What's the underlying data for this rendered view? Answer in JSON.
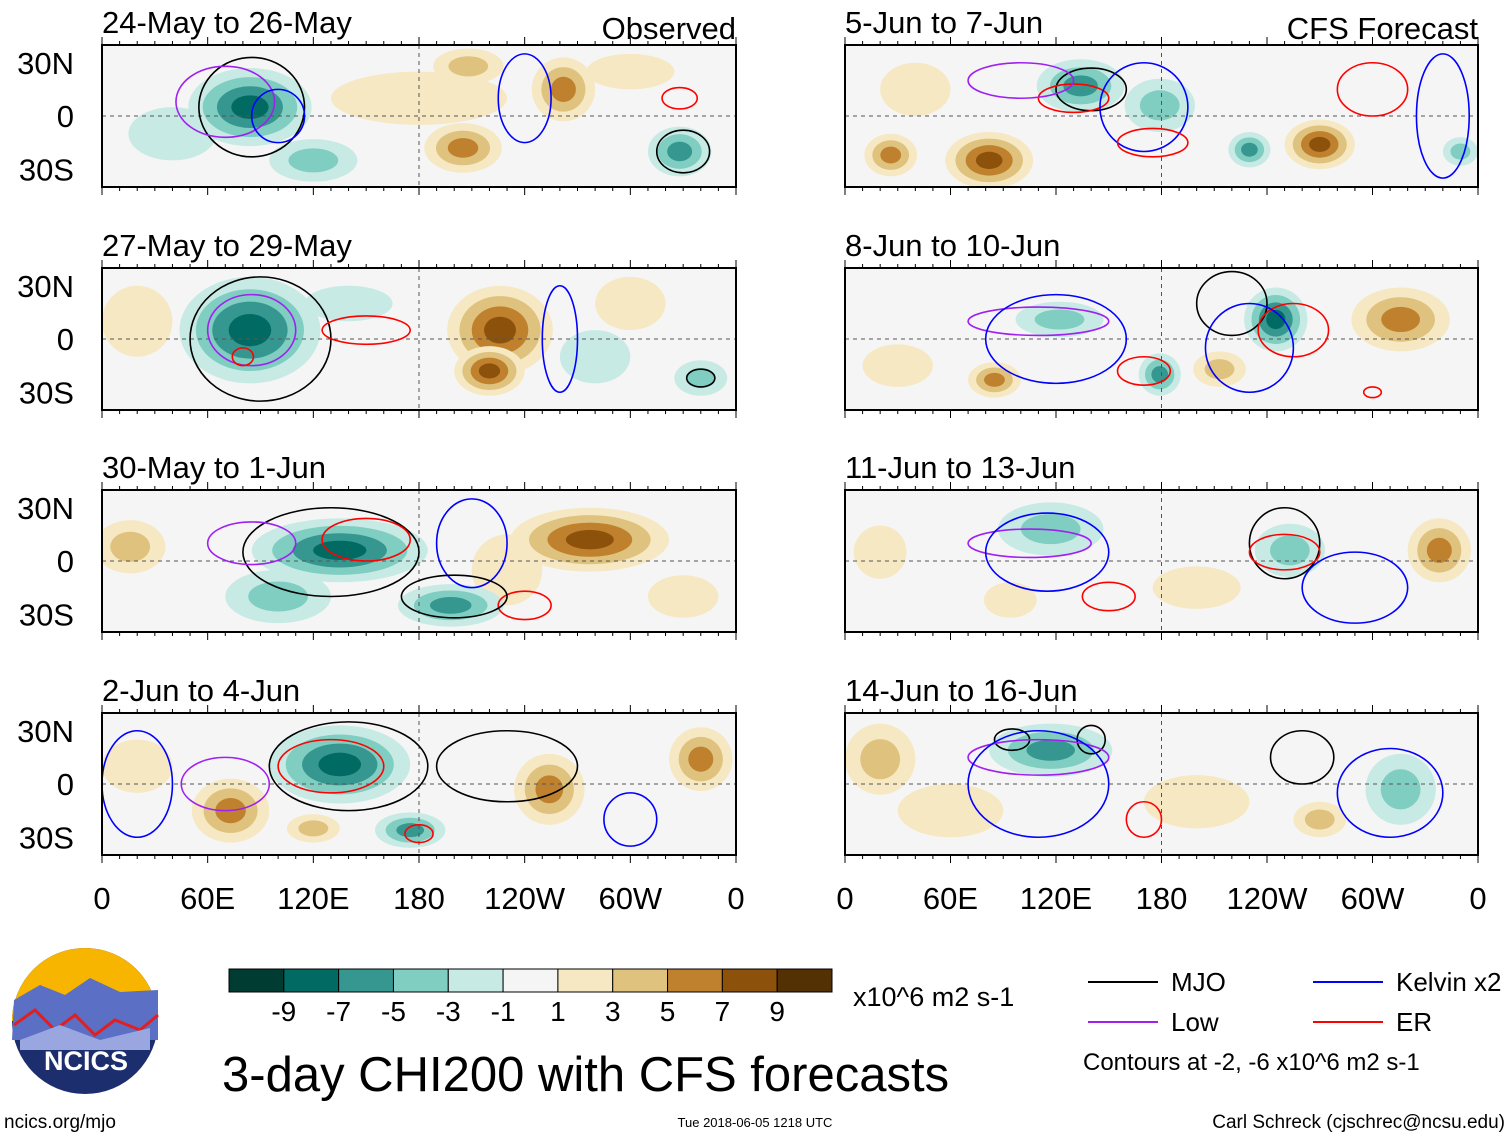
{
  "chart_data": {
    "type": "heatmap",
    "title": "3-day CHI200 with CFS forecasts",
    "units": "x10^6 m2 s-1",
    "section_labels": {
      "observed": "Observed",
      "forecast": "CFS Forecast"
    },
    "ylabels": [
      "30N",
      "0",
      "30S"
    ],
    "yticks": [
      30,
      0,
      -30
    ],
    "xlabels": [
      "0",
      "60E",
      "120E",
      "180",
      "120W",
      "60W",
      "0"
    ],
    "xticks": [
      0,
      60,
      120,
      180,
      240,
      300,
      360
    ],
    "xlim": [
      0,
      360
    ],
    "ylim": [
      -40,
      40
    ],
    "colorbar": {
      "labels": [
        "-9",
        "-7",
        "-5",
        "-3",
        "-1",
        "1",
        "3",
        "5",
        "7",
        "9"
      ],
      "colors": [
        "#013c33",
        "#016b63",
        "#35978f",
        "#80cdc1",
        "#c7eae5",
        "#f5f5f5",
        "#f6e8c3",
        "#dfc27d",
        "#bf812d",
        "#8c510a",
        "#543005"
      ]
    },
    "legend": {
      "items": [
        {
          "label": "MJO",
          "color": "#000000"
        },
        {
          "label": "Kelvin x2",
          "color": "#0000ff"
        },
        {
          "label": "Low",
          "color": "#a020f0"
        },
        {
          "label": "ER",
          "color": "#ff0000"
        }
      ],
      "note": "Contours at -2, -6 x10^6 m2 s-1"
    },
    "panels": [
      {
        "title": "24-May to 26-May",
        "kind": "observed",
        "anomalies": [
          [
            84,
            5,
            35,
            22,
            -8
          ],
          [
            120,
            -25,
            25,
            12,
            -4
          ],
          [
            208,
            28,
            20,
            10,
            5
          ],
          [
            205,
            -18,
            22,
            14,
            6
          ],
          [
            262,
            15,
            18,
            18,
            6
          ],
          [
            328,
            -20,
            18,
            14,
            -6
          ],
          [
            40,
            -10,
            25,
            15,
            -2
          ],
          [
            180,
            10,
            50,
            15,
            2
          ],
          [
            300,
            25,
            25,
            10,
            2
          ]
        ],
        "contours": [
          [
            "mjo",
            85,
            5,
            30,
            28
          ],
          [
            "low",
            70,
            8,
            28,
            20
          ],
          [
            "kelvin",
            100,
            0,
            15,
            15
          ],
          [
            "kelvin",
            240,
            10,
            15,
            25
          ],
          [
            "er",
            328,
            10,
            10,
            6
          ],
          [
            "mjo",
            330,
            -20,
            15,
            12
          ]
        ]
      },
      {
        "title": "27-May to 29-May",
        "kind": "observed",
        "anomalies": [
          [
            84,
            5,
            40,
            30,
            -9
          ],
          [
            226,
            5,
            30,
            25,
            8
          ],
          [
            220,
            -18,
            20,
            14,
            8
          ],
          [
            340,
            -22,
            15,
            10,
            -5
          ],
          [
            140,
            20,
            25,
            10,
            -3
          ],
          [
            20,
            10,
            20,
            20,
            2
          ],
          [
            300,
            20,
            20,
            15,
            3
          ],
          [
            280,
            -10,
            20,
            15,
            -2
          ]
        ],
        "contours": [
          [
            "mjo",
            90,
            0,
            40,
            35
          ],
          [
            "low",
            85,
            5,
            25,
            20
          ],
          [
            "er",
            150,
            5,
            25,
            8
          ],
          [
            "kelvin",
            260,
            0,
            10,
            30
          ],
          [
            "er",
            80,
            -10,
            6,
            5
          ],
          [
            "mjo",
            340,
            -22,
            8,
            5
          ]
        ]
      },
      {
        "title": "30-May to 1-Jun",
        "kind": "observed",
        "anomalies": [
          [
            135,
            6,
            50,
            18,
            -9
          ],
          [
            277,
            12,
            45,
            18,
            9
          ],
          [
            16,
            8,
            20,
            15,
            5
          ],
          [
            198,
            -25,
            30,
            12,
            -6
          ],
          [
            100,
            -20,
            30,
            15,
            -4
          ],
          [
            230,
            -5,
            20,
            20,
            2
          ],
          [
            330,
            -20,
            20,
            12,
            2
          ]
        ],
        "contours": [
          [
            "mjo",
            130,
            5,
            50,
            25
          ],
          [
            "er",
            150,
            12,
            25,
            12
          ],
          [
            "low",
            85,
            10,
            25,
            12
          ],
          [
            "kelvin",
            210,
            10,
            20,
            25
          ],
          [
            "er",
            240,
            -25,
            15,
            8
          ],
          [
            "mjo",
            200,
            -20,
            30,
            12
          ]
        ]
      },
      {
        "title": "2-Jun to 4-Jun",
        "kind": "observed",
        "anomalies": [
          [
            135,
            11,
            40,
            22,
            -9
          ],
          [
            73,
            -15,
            22,
            18,
            7
          ],
          [
            254,
            -3,
            20,
            20,
            6
          ],
          [
            340,
            14,
            18,
            18,
            6
          ],
          [
            175,
            -26,
            20,
            10,
            -7
          ],
          [
            20,
            10,
            20,
            15,
            2
          ],
          [
            120,
            -25,
            15,
            8,
            4
          ]
        ],
        "contours": [
          [
            "mjo",
            140,
            10,
            45,
            25
          ],
          [
            "er",
            130,
            10,
            30,
            15
          ],
          [
            "low",
            70,
            0,
            25,
            15
          ],
          [
            "kelvin",
            20,
            0,
            20,
            30
          ],
          [
            "er",
            180,
            -28,
            8,
            5
          ],
          [
            "kelvin",
            300,
            -20,
            15,
            15
          ],
          [
            "mjo",
            230,
            10,
            40,
            20
          ]
        ]
      },
      {
        "title": "5-Jun to 7-Jun",
        "kind": "forecast",
        "anomalies": [
          [
            134,
            17,
            25,
            15,
            -7
          ],
          [
            179,
            6,
            20,
            15,
            -5
          ],
          [
            82,
            -25,
            25,
            16,
            9
          ],
          [
            270,
            -16,
            20,
            14,
            8
          ],
          [
            26,
            -22,
            15,
            12,
            6
          ],
          [
            230,
            -19,
            12,
            10,
            -6
          ],
          [
            350,
            -20,
            10,
            8,
            -4
          ],
          [
            40,
            15,
            20,
            15,
            2
          ]
        ],
        "contours": [
          [
            "mjo",
            140,
            15,
            20,
            12
          ],
          [
            "er",
            130,
            10,
            20,
            8
          ],
          [
            "low",
            100,
            20,
            30,
            10
          ],
          [
            "kelvin",
            170,
            5,
            25,
            25
          ],
          [
            "er",
            175,
            -15,
            20,
            8
          ],
          [
            "er",
            300,
            15,
            20,
            15
          ],
          [
            "kelvin",
            340,
            0,
            15,
            35
          ]
        ]
      },
      {
        "title": "8-Jun to 10-Jun",
        "kind": "forecast",
        "anomalies": [
          [
            245,
            11,
            18,
            18,
            -9
          ],
          [
            316,
            11,
            28,
            18,
            6
          ],
          [
            85,
            -23,
            15,
            10,
            7
          ],
          [
            179,
            -20,
            12,
            12,
            -7
          ],
          [
            213,
            -17,
            15,
            10,
            5
          ],
          [
            122,
            11,
            25,
            10,
            -4
          ],
          [
            30,
            -15,
            20,
            12,
            2
          ]
        ],
        "contours": [
          [
            "mjo",
            220,
            20,
            20,
            18
          ],
          [
            "er",
            255,
            5,
            20,
            15
          ],
          [
            "low",
            110,
            10,
            40,
            8
          ],
          [
            "kelvin",
            120,
            0,
            40,
            25
          ],
          [
            "er",
            170,
            -18,
            15,
            8
          ],
          [
            "kelvin",
            230,
            -5,
            25,
            25
          ],
          [
            "er",
            300,
            -30,
            5,
            3
          ]
        ]
      },
      {
        "title": "11-Jun to 13-Jun",
        "kind": "forecast",
        "anomalies": [
          [
            117,
            18,
            30,
            15,
            -5
          ],
          [
            338,
            6,
            18,
            18,
            7
          ],
          [
            253,
            6,
            20,
            15,
            -5
          ],
          [
            94,
            -22,
            15,
            10,
            2
          ],
          [
            20,
            5,
            15,
            15,
            3
          ],
          [
            200,
            -15,
            25,
            12,
            2
          ]
        ],
        "contours": [
          [
            "mjo",
            250,
            10,
            20,
            20
          ],
          [
            "er",
            250,
            5,
            20,
            10
          ],
          [
            "low",
            105,
            10,
            35,
            8
          ],
          [
            "kelvin",
            115,
            5,
            35,
            22
          ],
          [
            "er",
            150,
            -20,
            15,
            8
          ],
          [
            "kelvin",
            290,
            -15,
            30,
            20
          ]
        ]
      },
      {
        "title": "14-Jun to 16-Jun",
        "kind": "forecast",
        "anomalies": [
          [
            117,
            19,
            35,
            15,
            -6
          ],
          [
            20,
            14,
            20,
            20,
            5
          ],
          [
            270,
            -20,
            15,
            10,
            5
          ],
          [
            316,
            -3,
            20,
            20,
            -4
          ],
          [
            60,
            -15,
            30,
            15,
            2
          ],
          [
            200,
            -10,
            30,
            15,
            2
          ]
        ],
        "contours": [
          [
            "mjo",
            95,
            25,
            10,
            6
          ],
          [
            "mjo",
            140,
            25,
            8,
            8
          ],
          [
            "low",
            110,
            15,
            40,
            10
          ],
          [
            "kelvin",
            110,
            0,
            40,
            30
          ],
          [
            "er",
            170,
            -20,
            10,
            10
          ],
          [
            "mjo",
            260,
            15,
            18,
            15
          ],
          [
            "kelvin",
            310,
            -5,
            30,
            25
          ]
        ]
      }
    ]
  },
  "footer": {
    "logo_text": "NCICS",
    "url": "ncics.org/mjo",
    "timestamp": "Tue 2018-06-05 1218 UTC",
    "credit": "Carl Schreck (cjschrec@ncsu.edu)"
  }
}
